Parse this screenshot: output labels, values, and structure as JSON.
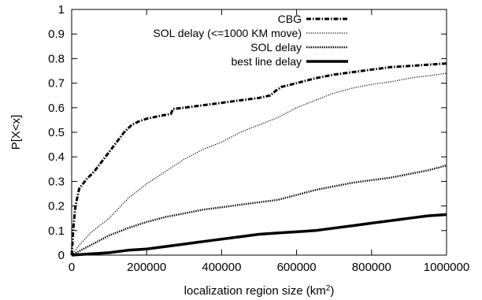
{
  "chart_data": {
    "type": "line",
    "title": "",
    "xlabel": "localization region size (km",
    "xlabel_sup": "2",
    "xlabel_suffix": ")",
    "ylabel": "P[X<x]",
    "xlim": [
      0,
      1000000
    ],
    "ylim": [
      0,
      1
    ],
    "x_ticks": [
      0,
      200000,
      400000,
      600000,
      800000,
      1000000
    ],
    "x_tick_labels": [
      "0",
      "200000",
      "400000",
      "600000",
      "800000",
      "1000000"
    ],
    "y_ticks": [
      0,
      0.1,
      0.2,
      0.3,
      0.4,
      0.5,
      0.6,
      0.7,
      0.8,
      0.9,
      1
    ],
    "y_tick_labels": [
      "0",
      "0.1",
      "0.2",
      "0.3",
      "0.4",
      "0.5",
      "0.6",
      "0.7",
      "0.8",
      "0.9",
      "1"
    ],
    "grid": false,
    "legend_position": "top-right",
    "series": [
      {
        "name": "CBG",
        "style": "dash-dot",
        "color": "#000000",
        "x": [
          0,
          5000,
          10000,
          20000,
          40000,
          60000,
          80000,
          100000,
          120000,
          140000,
          160000,
          180000,
          200000,
          230000,
          265000,
          270000,
          300000,
          350000,
          400000,
          450000,
          500000,
          530000,
          545000,
          560000,
          600000,
          650000,
          700000,
          750000,
          800000,
          850000,
          900000,
          950000,
          1000000
        ],
        "y": [
          0,
          0.12,
          0.2,
          0.27,
          0.31,
          0.34,
          0.38,
          0.42,
          0.46,
          0.5,
          0.53,
          0.545,
          0.555,
          0.565,
          0.575,
          0.595,
          0.6,
          0.61,
          0.62,
          0.63,
          0.64,
          0.65,
          0.67,
          0.685,
          0.7,
          0.72,
          0.735,
          0.745,
          0.755,
          0.765,
          0.77,
          0.775,
          0.78
        ]
      },
      {
        "name": "SOL delay (<=1000 KM move)",
        "style": "dotted-fine",
        "color": "#000000",
        "x": [
          0,
          20000,
          50000,
          100000,
          150000,
          200000,
          250000,
          300000,
          350000,
          400000,
          450000,
          500000,
          550000,
          600000,
          650000,
          700000,
          750000,
          800000,
          850000,
          900000,
          950000,
          1000000
        ],
        "y": [
          0,
          0.04,
          0.09,
          0.15,
          0.23,
          0.29,
          0.34,
          0.39,
          0.43,
          0.46,
          0.5,
          0.53,
          0.56,
          0.6,
          0.63,
          0.66,
          0.68,
          0.695,
          0.705,
          0.72,
          0.73,
          0.74
        ]
      },
      {
        "name": "SOL delay",
        "style": "dotted",
        "color": "#000000",
        "x": [
          0,
          50000,
          100000,
          150000,
          200000,
          250000,
          300000,
          350000,
          400000,
          450000,
          500000,
          550000,
          600000,
          650000,
          700000,
          750000,
          800000,
          850000,
          900000,
          950000,
          1000000
        ],
        "y": [
          0,
          0.04,
          0.08,
          0.11,
          0.135,
          0.155,
          0.17,
          0.185,
          0.195,
          0.205,
          0.215,
          0.225,
          0.245,
          0.265,
          0.28,
          0.295,
          0.305,
          0.315,
          0.33,
          0.345,
          0.365
        ]
      },
      {
        "name": "best line delay",
        "style": "solid-thick",
        "color": "#000000",
        "x": [
          0,
          50000,
          100000,
          150000,
          200000,
          250000,
          300000,
          350000,
          400000,
          450000,
          500000,
          550000,
          600000,
          650000,
          700000,
          750000,
          800000,
          850000,
          900000,
          950000,
          1000000
        ],
        "y": [
          0,
          0.005,
          0.01,
          0.02,
          0.025,
          0.035,
          0.045,
          0.055,
          0.065,
          0.075,
          0.085,
          0.09,
          0.095,
          0.1,
          0.11,
          0.12,
          0.13,
          0.14,
          0.15,
          0.16,
          0.165
        ]
      }
    ]
  }
}
